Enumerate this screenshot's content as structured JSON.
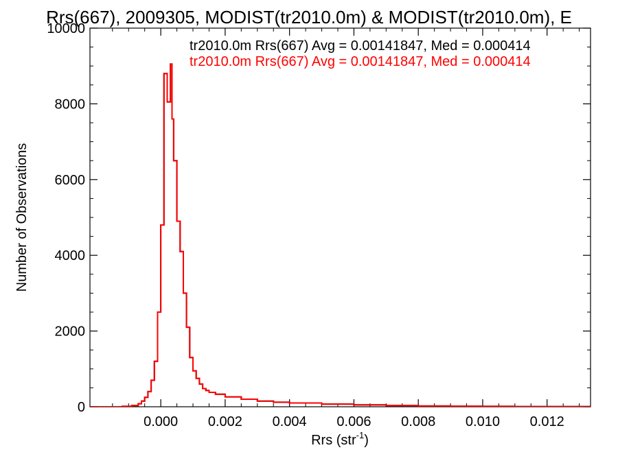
{
  "chart_data": {
    "type": "histogram",
    "title": "Rrs(667), 2009305, MODIST(tr2010.0m) & MODIST(tr2010.0m), E",
    "xlabel": "Rrs (str",
    "xlabel_sup": "-1",
    "xlabel_close": ")",
    "ylabel": "Number of Observations",
    "xlim": [
      -0.0022,
      0.01335
    ],
    "ylim": [
      0,
      10000
    ],
    "xticks": [
      0.0,
      0.002,
      0.004,
      0.006,
      0.008,
      0.01,
      0.012
    ],
    "xtick_labels": [
      "0.000",
      "0.002",
      "0.004",
      "0.006",
      "0.008",
      "0.010",
      "0.012"
    ],
    "yticks": [
      0,
      2000,
      4000,
      6000,
      8000,
      10000
    ],
    "ytick_labels": [
      "0",
      "2000",
      "4000",
      "6000",
      "8000",
      "10000"
    ],
    "legend_placement": "top-right",
    "series": [
      {
        "name": "tr2010.0m Rrs(667) Avg = 0.00141847, Med = 0.000414",
        "color": "#000000",
        "x": [
          -0.0022,
          -0.0016,
          -0.0012,
          -0.0009,
          -0.0007,
          -0.0006,
          -0.0005,
          -0.0004,
          -0.0003,
          -0.0002,
          -0.0001,
          0.0,
          0.0001,
          0.0002,
          0.0003,
          0.00035,
          0.0004,
          0.0005,
          0.0006,
          0.0007,
          0.0008,
          0.0009,
          0.001,
          0.0011,
          0.0012,
          0.0013,
          0.0014,
          0.0015,
          0.0017,
          0.002,
          0.0025,
          0.003,
          0.0035,
          0.004,
          0.005,
          0.006,
          0.007,
          0.008,
          0.009,
          0.01,
          0.011,
          0.012,
          0.01335
        ],
        "y": [
          0,
          0,
          10,
          30,
          80,
          150,
          250,
          400,
          700,
          1200,
          2500,
          4800,
          8800,
          8050,
          9050,
          7600,
          6500,
          4900,
          4100,
          3000,
          2100,
          1300,
          950,
          750,
          600,
          480,
          430,
          380,
          330,
          260,
          200,
          150,
          120,
          100,
          70,
          50,
          30,
          20,
          15,
          10,
          5,
          3,
          0
        ]
      },
      {
        "name": "tr2010.0m Rrs(667) Avg = 0.00141847, Med = 0.000414",
        "color": "#ff0000",
        "x": [
          -0.0022,
          -0.0016,
          -0.0012,
          -0.0009,
          -0.0007,
          -0.0006,
          -0.0005,
          -0.0004,
          -0.0003,
          -0.0002,
          -0.0001,
          0.0,
          0.0001,
          0.0002,
          0.0003,
          0.00035,
          0.0004,
          0.0005,
          0.0006,
          0.0007,
          0.0008,
          0.0009,
          0.001,
          0.0011,
          0.0012,
          0.0013,
          0.0014,
          0.0015,
          0.0017,
          0.002,
          0.0025,
          0.003,
          0.0035,
          0.004,
          0.005,
          0.006,
          0.007,
          0.008,
          0.009,
          0.01,
          0.011,
          0.012,
          0.01335
        ],
        "y": [
          0,
          0,
          10,
          30,
          80,
          150,
          250,
          400,
          700,
          1200,
          2500,
          4800,
          8800,
          8050,
          9050,
          7600,
          6500,
          4900,
          4100,
          3000,
          2100,
          1300,
          950,
          750,
          600,
          480,
          430,
          380,
          330,
          260,
          200,
          150,
          120,
          100,
          70,
          50,
          30,
          20,
          15,
          10,
          5,
          3,
          0
        ]
      }
    ]
  }
}
